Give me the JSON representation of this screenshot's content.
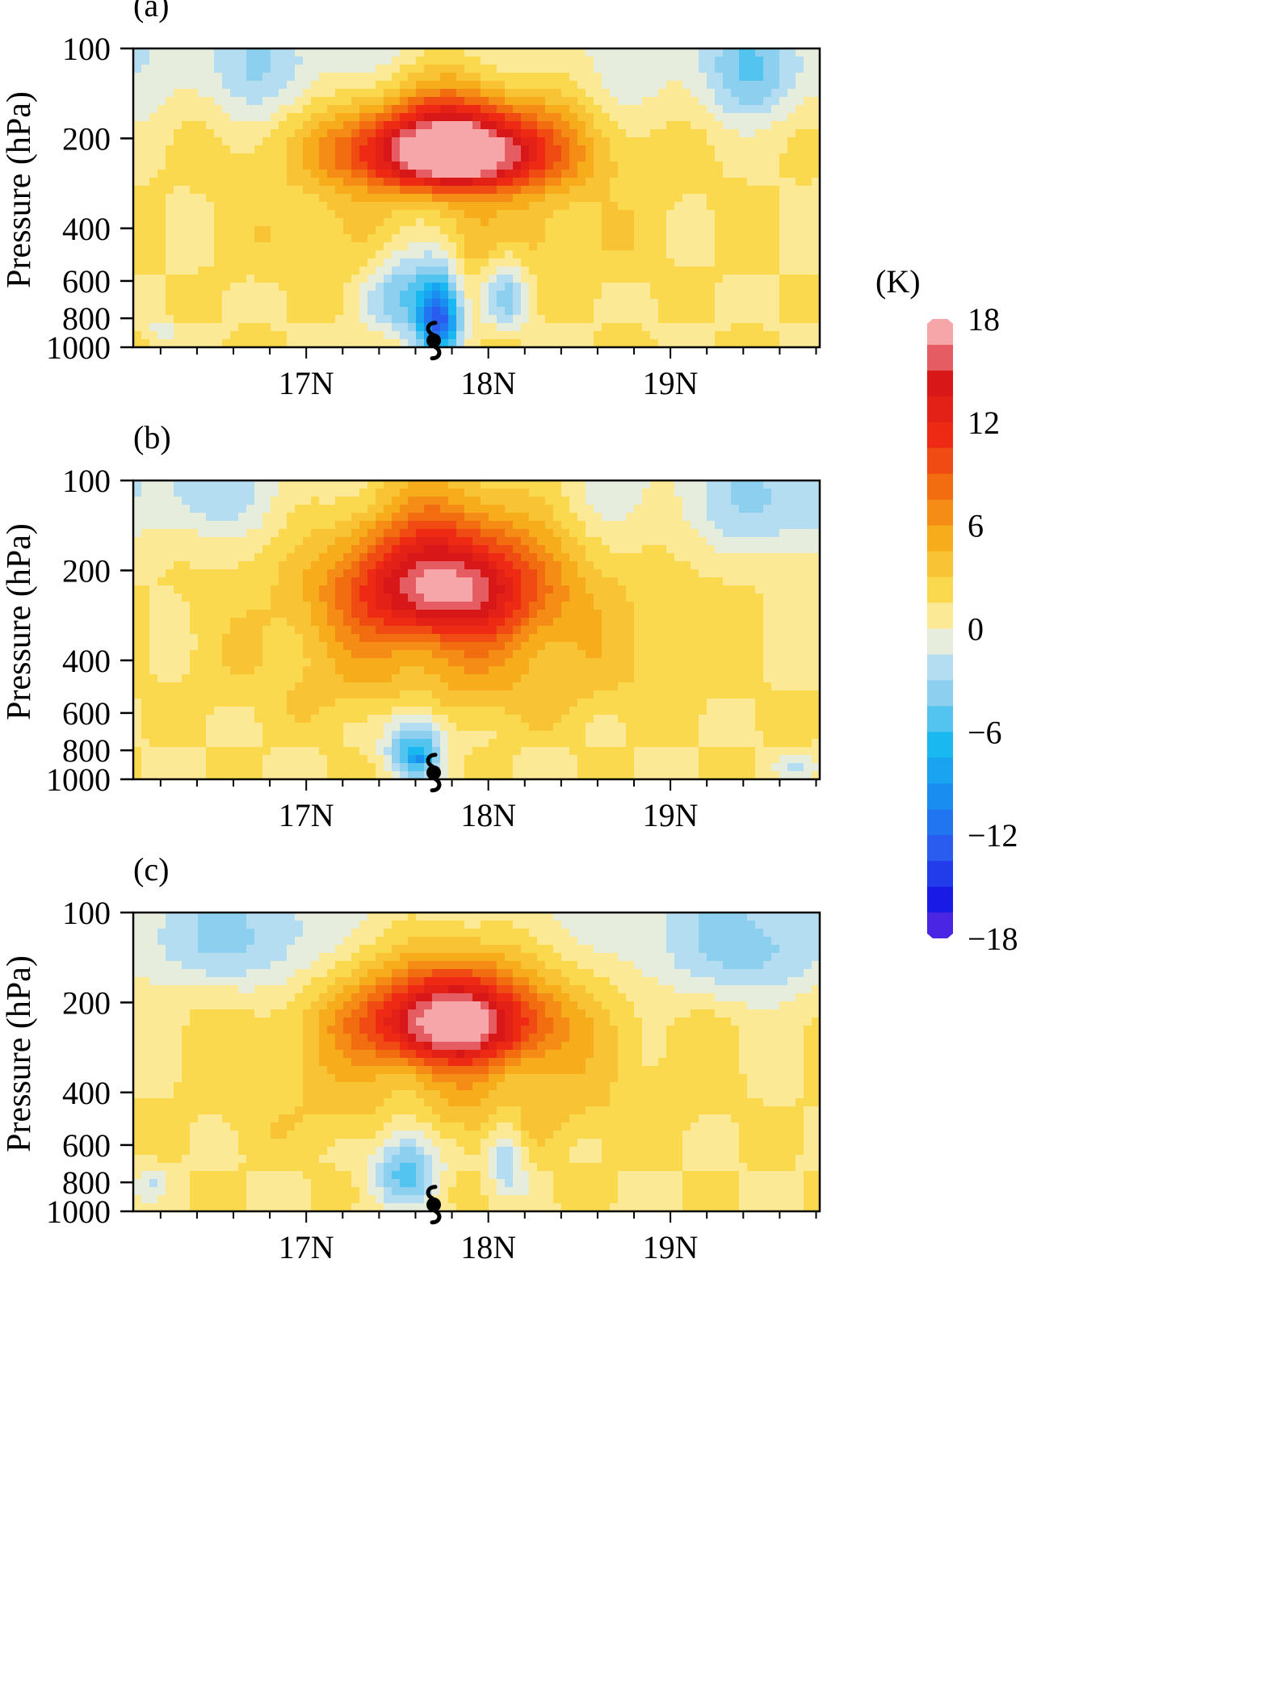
{
  "figure": {
    "colorbar": {
      "unit": "(K)",
      "min": -18,
      "max": 18,
      "ticks": [
        18,
        12,
        6,
        0,
        -6,
        -12,
        -18
      ],
      "tick_labels": [
        "18",
        "12",
        "6",
        "0",
        "−6",
        "−12",
        "−18"
      ],
      "stops": [
        {
          "v": -18,
          "c": "#7a2fe0"
        },
        {
          "v": -15,
          "c": "#1a1ae6"
        },
        {
          "v": -12,
          "c": "#2a5cf0"
        },
        {
          "v": -9,
          "c": "#1a8ef0"
        },
        {
          "v": -6,
          "c": "#1ab8f0"
        },
        {
          "v": -3,
          "c": "#8ccfee"
        },
        {
          "v": -0.5,
          "c": "#cfe6f5"
        },
        {
          "v": 0.5,
          "c": "#fdf4c4"
        },
        {
          "v": 3,
          "c": "#fbd94f"
        },
        {
          "v": 6,
          "c": "#f7ac1c"
        },
        {
          "v": 9,
          "c": "#f26c10"
        },
        {
          "v": 12,
          "c": "#ee2a14"
        },
        {
          "v": 15,
          "c": "#d81818"
        },
        {
          "v": 16.5,
          "c": "#e55d62"
        },
        {
          "v": 18,
          "c": "#f6a6a8"
        }
      ]
    }
  },
  "chart_data": [
    {
      "panel": "(a)",
      "type": "heatmap",
      "ylabel": "Pressure (hPa)",
      "yticks": [
        100,
        200,
        400,
        600,
        800,
        1000
      ],
      "xticks": [
        17,
        18,
        19
      ],
      "xtick_labels": [
        "17N",
        "18N",
        "19N"
      ],
      "xlim": [
        16.05,
        19.82
      ],
      "ylim": [
        1000,
        100
      ],
      "storm_center": {
        "lat": 17.7,
        "p": 950
      },
      "features": [
        {
          "lat": 17.8,
          "p": 220,
          "amp": 20,
          "wx": 0.55,
          "wp": 75
        },
        {
          "lat": 17.8,
          "p": 400,
          "amp": 3,
          "wx": 0.9,
          "wp": 200
        },
        {
          "lat": 17.73,
          "p": 800,
          "amp": -13,
          "wx": 0.11,
          "wp": 230
        },
        {
          "lat": 17.55,
          "p": 650,
          "amp": -6,
          "wx": 0.22,
          "wp": 300
        },
        {
          "lat": 18.1,
          "p": 650,
          "amp": -5,
          "wx": 0.12,
          "wp": 220
        },
        {
          "lat": 19.45,
          "p": 120,
          "amp": -3.5,
          "wx": 0.3,
          "wp": 50
        },
        {
          "lat": 16.8,
          "p": 120,
          "amp": -2,
          "wx": 0.45,
          "wp": 45
        },
        {
          "lat": 16.2,
          "p": 880,
          "amp": -2.5,
          "wx": 0.08,
          "wp": 70
        }
      ]
    },
    {
      "panel": "(b)",
      "type": "heatmap",
      "ylabel": "Pressure (hPa)",
      "yticks": [
        100,
        200,
        400,
        600,
        800,
        1000
      ],
      "xticks": [
        17,
        18,
        19
      ],
      "xtick_labels": [
        "17N",
        "18N",
        "19N"
      ],
      "xlim": [
        16.05,
        19.82
      ],
      "ylim": [
        1000,
        100
      ],
      "storm_center": {
        "lat": 17.7,
        "p": 950
      },
      "features": [
        {
          "lat": 17.75,
          "p": 220,
          "amp": 14,
          "wx": 0.55,
          "wp": 110
        },
        {
          "lat": 17.8,
          "p": 400,
          "amp": 4,
          "wx": 1.0,
          "wp": 230
        },
        {
          "lat": 17.6,
          "p": 780,
          "amp": -8,
          "wx": 0.16,
          "wp": 220
        },
        {
          "lat": 17.62,
          "p": 860,
          "amp": -3,
          "wx": 0.05,
          "wp": 50
        },
        {
          "lat": 19.6,
          "p": 120,
          "amp": -3,
          "wx": 0.35,
          "wp": 55
        },
        {
          "lat": 16.4,
          "p": 110,
          "amp": -2,
          "wx": 0.3,
          "wp": 35
        },
        {
          "lat": 19.7,
          "p": 900,
          "amp": -2.5,
          "wx": 0.15,
          "wp": 80
        }
      ]
    },
    {
      "panel": "(c)",
      "type": "heatmap",
      "ylabel": "Pressure (hPa)",
      "yticks": [
        100,
        200,
        400,
        600,
        800,
        1000
      ],
      "xticks": [
        17,
        18,
        19
      ],
      "xtick_labels": [
        "17N",
        "18N",
        "19N"
      ],
      "xlim": [
        16.05,
        19.82
      ],
      "ylim": [
        1000,
        100
      ],
      "storm_center": {
        "lat": 17.7,
        "p": 950
      },
      "features": [
        {
          "lat": 17.8,
          "p": 230,
          "amp": 16,
          "wx": 0.5,
          "wp": 85
        },
        {
          "lat": 17.8,
          "p": 400,
          "amp": 3.5,
          "wx": 0.95,
          "wp": 210
        },
        {
          "lat": 17.55,
          "p": 700,
          "amp": -7,
          "wx": 0.18,
          "wp": 250
        },
        {
          "lat": 18.1,
          "p": 650,
          "amp": -5,
          "wx": 0.1,
          "wp": 200
        },
        {
          "lat": 16.6,
          "p": 130,
          "amp": -3,
          "wx": 0.45,
          "wp": 55
        },
        {
          "lat": 19.4,
          "p": 140,
          "amp": -3.5,
          "wx": 0.45,
          "wp": 60
        },
        {
          "lat": 16.15,
          "p": 800,
          "amp": -2.5,
          "wx": 0.1,
          "wp": 110
        }
      ]
    }
  ]
}
